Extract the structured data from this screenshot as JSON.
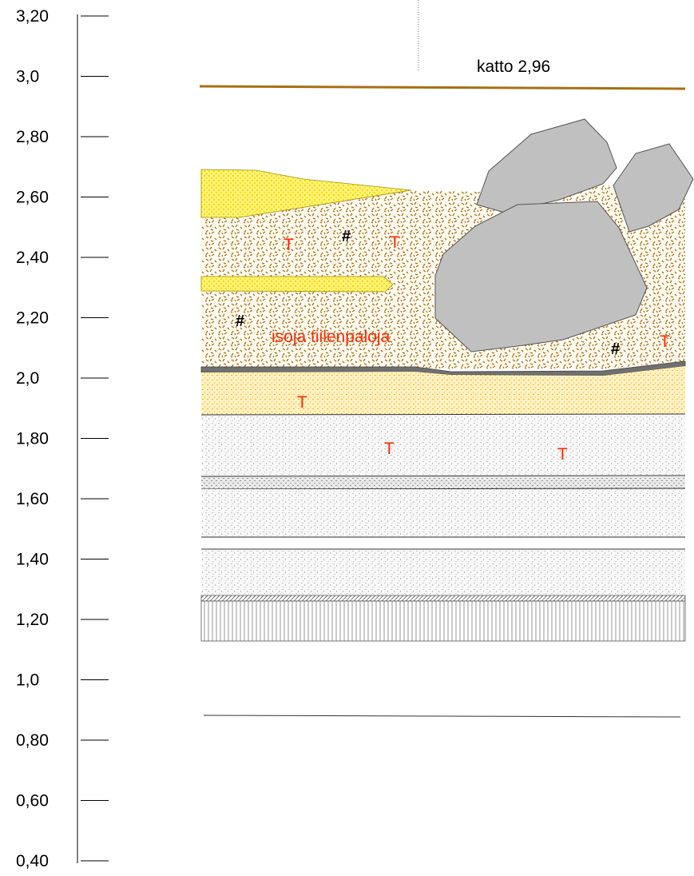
{
  "scale": {
    "ticks": [
      "3,20",
      "3,0",
      "2,80",
      "2,60",
      "2,40",
      "2,20",
      "2,0",
      "1,80",
      "1,60",
      "1,40",
      "1,20",
      "1,0",
      "0,80",
      "0,60",
      "0,40"
    ]
  },
  "roof": {
    "label": "katto 2,96",
    "color": "#a86f14"
  },
  "layers": [
    {
      "name": "brick-rubble",
      "color": "#a86f14"
    },
    {
      "name": "yellow-sand",
      "color": "#ffee00"
    },
    {
      "name": "orange-sand",
      "color": "#f7c31c"
    },
    {
      "name": "grey-silt",
      "color": "#b5b5b5"
    },
    {
      "name": "hatched-base",
      "color": "#999999"
    }
  ],
  "stones_color": "#c0c0c0",
  "annotations": {
    "brick_label": "isoja tiilenpaloja",
    "t_symbol": "T",
    "hash_symbol": "#"
  }
}
